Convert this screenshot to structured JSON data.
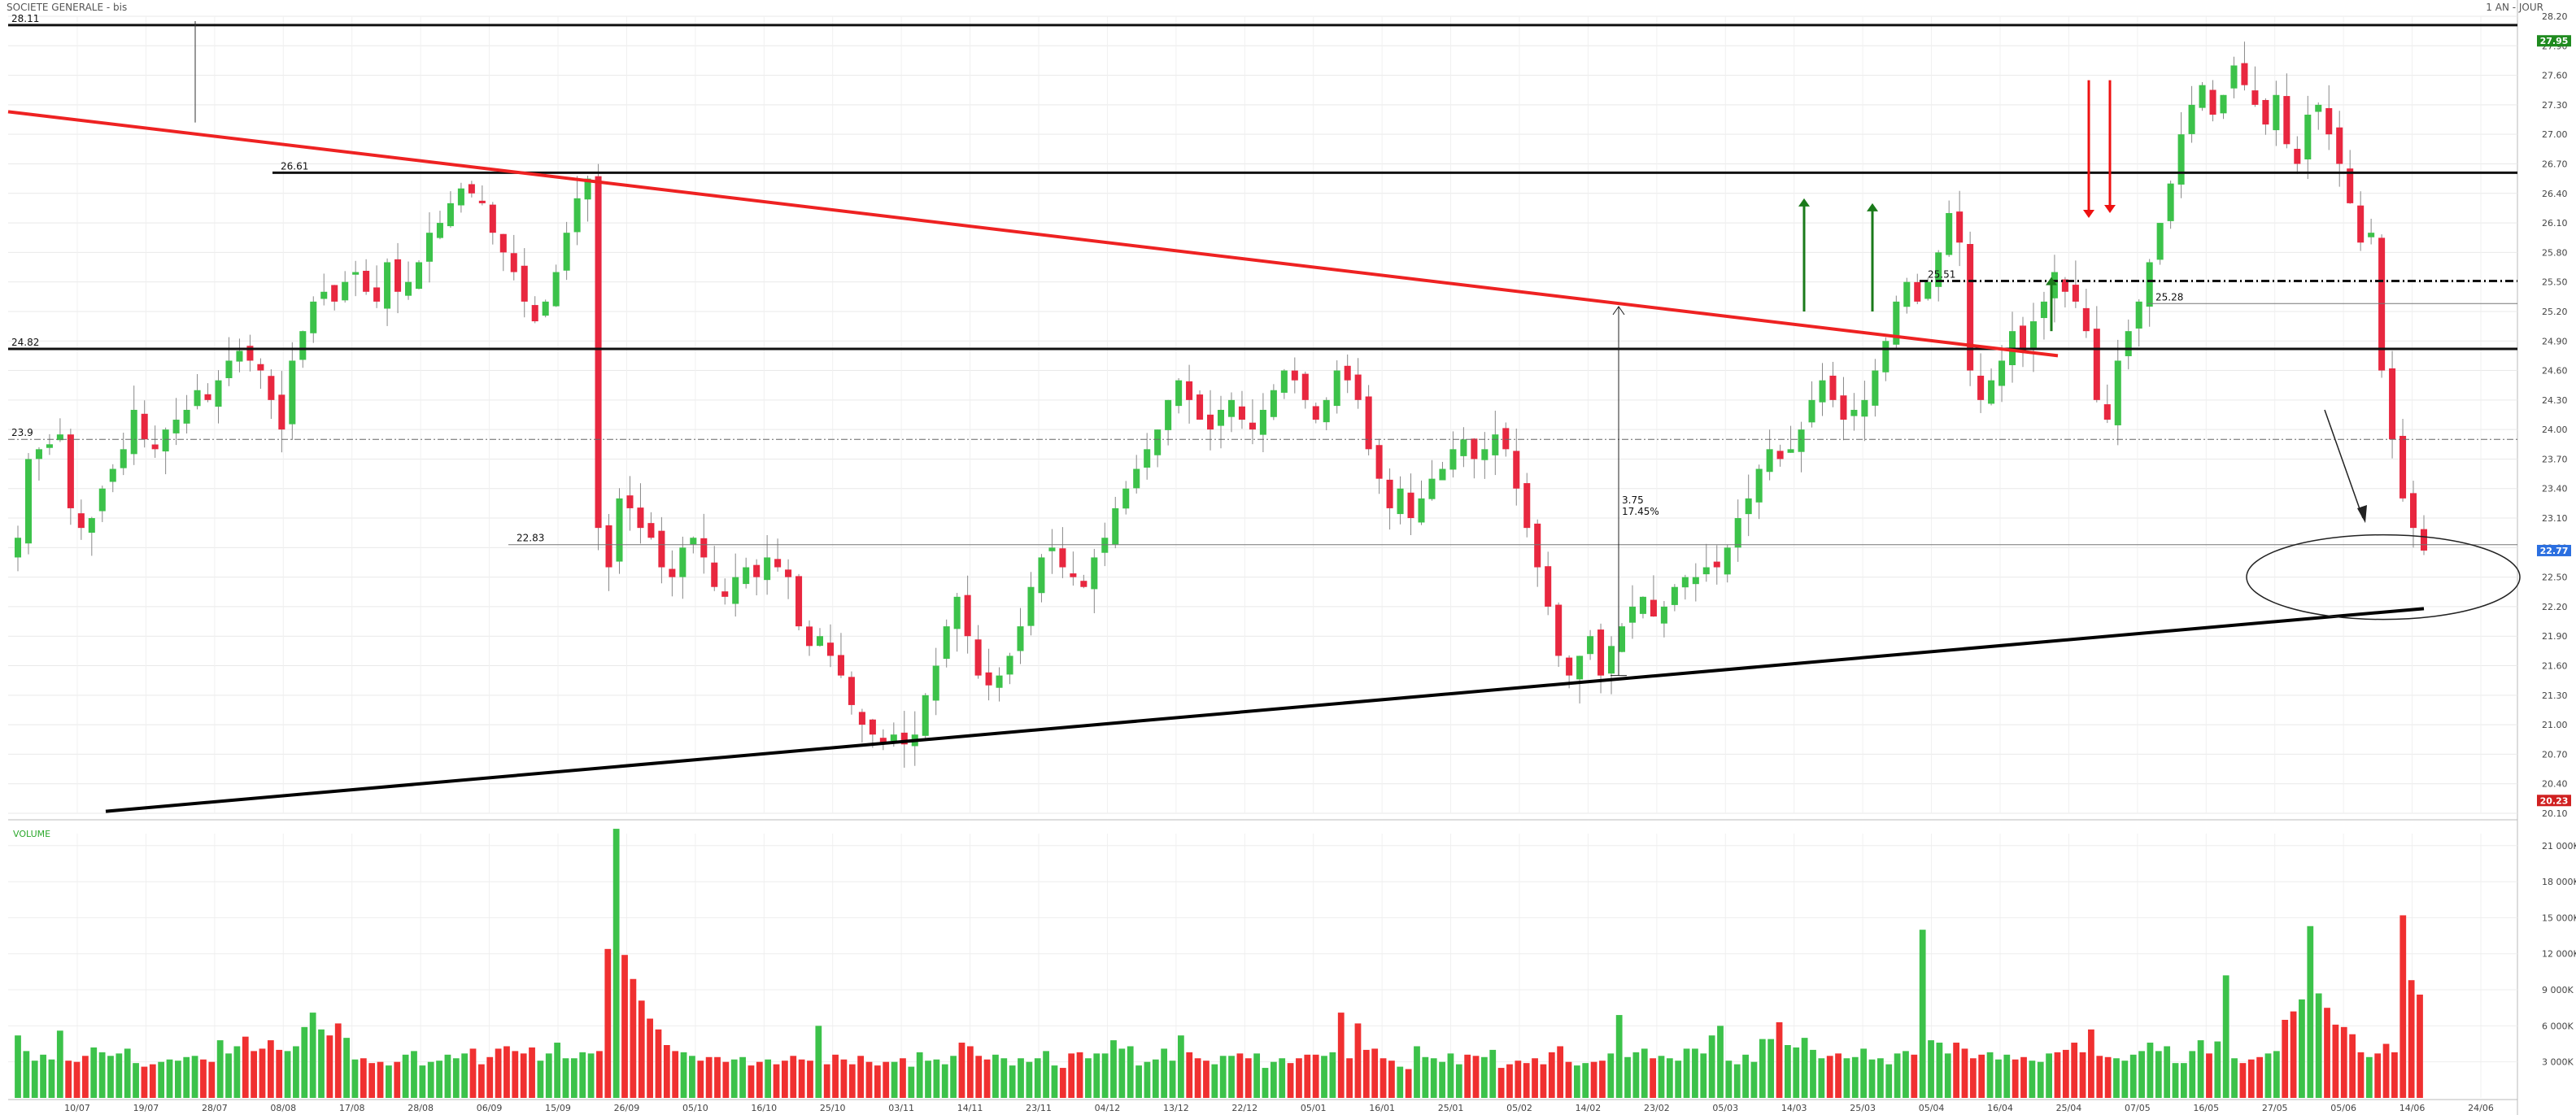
{
  "header": {
    "title": "SOCIETE GENERALE - bis",
    "period": "1 AN - JOUR"
  },
  "colors": {
    "up": "#3cc24a",
    "down": "#e8273f",
    "trend_red": "#ee2222",
    "arrow_green": "#1a7a1a",
    "badge_last": "#2b6fe0",
    "badge_high": "#1f8a1f",
    "badge_low": "#d02020"
  },
  "chart_data": {
    "type": "candlestick",
    "price_axis": {
      "min": 20.1,
      "max": 28.2,
      "ticks": [
        "28.20",
        "27.90",
        "27.60",
        "27.30",
        "27.00",
        "26.70",
        "26.40",
        "26.10",
        "25.80",
        "25.50",
        "25.20",
        "24.90",
        "24.60",
        "24.30",
        "24.00",
        "23.70",
        "23.40",
        "23.10",
        "22.80",
        "22.50",
        "22.20",
        "21.90",
        "21.60",
        "21.30",
        "21.00",
        "20.70",
        "20.40",
        "20.10"
      ]
    },
    "date_labels": [
      "10/07",
      "19/07",
      "28/07",
      "08/08",
      "17/08",
      "28/08",
      "06/09",
      "15/09",
      "26/09",
      "05/10",
      "16/10",
      "25/10",
      "03/11",
      "14/11",
      "23/11",
      "04/12",
      "13/12",
      "22/12",
      "05/01",
      "16/01",
      "25/01",
      "05/02",
      "14/02",
      "23/02",
      "05/03",
      "14/03",
      "25/03",
      "05/04",
      "16/04",
      "25/04",
      "07/05",
      "16/05",
      "27/05",
      "05/06",
      "14/06",
      "24/06"
    ],
    "horizontal_levels": [
      {
        "value": 28.11,
        "label": "28.11",
        "style": "solid"
      },
      {
        "value": 26.61,
        "label": "26.61",
        "style": "solid"
      },
      {
        "value": 24.82,
        "label": "24.82",
        "style": "solid"
      },
      {
        "value": 23.9,
        "label": "23.9",
        "style": "dashdot"
      },
      {
        "value": 22.83,
        "label": "22.83",
        "style": "thin"
      },
      {
        "value": 25.51,
        "label": "25.51",
        "style": "dashed"
      },
      {
        "value": 25.28,
        "label": "25.28",
        "style": "thin"
      }
    ],
    "badges": {
      "high": "27.95",
      "last": "22.77",
      "low": "20.23"
    },
    "annotations": {
      "measure_text_1": "3.75",
      "measure_text_2": "17.45%"
    },
    "volume": {
      "label": "VOLUME",
      "ticks": [
        "21 000K",
        "18 000K",
        "15 000K",
        "12 000K",
        "9 000K",
        "6 000K",
        "3 000K"
      ],
      "max": 22000
    },
    "closes": [
      22.9,
      23.7,
      23.8,
      23.85,
      23.95,
      23.2,
      23.0,
      23.1,
      23.4,
      23.6,
      23.8,
      24.2,
      23.9,
      23.8,
      24.0,
      24.1,
      24.2,
      24.4,
      24.3,
      24.5,
      24.7,
      24.8,
      24.7,
      24.6,
      24.3,
      24.0,
      24.7,
      25.0,
      25.3,
      25.4,
      25.3,
      25.5,
      25.6,
      25.4,
      25.3,
      25.7,
      25.4,
      25.5,
      25.7,
      26.0,
      26.1,
      26.3,
      26.45,
      26.4,
      26.3,
      26.0,
      25.8,
      25.6,
      25.3,
      25.1,
      25.3,
      25.6,
      26.0,
      26.35,
      26.55,
      23.0,
      22.6,
      23.3,
      23.2,
      23.0,
      22.9,
      22.6,
      22.5,
      22.8,
      22.9,
      22.7,
      22.4,
      22.3,
      22.5,
      22.6,
      22.5,
      22.7,
      22.6,
      22.5,
      22.0,
      21.8,
      21.9,
      21.7,
      21.5,
      21.2,
      21.0,
      20.9,
      20.8,
      20.9,
      20.8,
      20.9,
      21.3,
      21.6,
      22.0,
      22.3,
      21.9,
      21.5,
      21.4,
      21.5,
      21.7,
      22.0,
      22.4,
      22.7,
      22.8,
      22.6,
      22.5,
      22.4,
      22.7,
      22.9,
      23.2,
      23.4,
      23.6,
      23.8,
      24.0,
      24.3,
      24.5,
      24.3,
      24.1,
      24.0,
      24.2,
      24.3,
      24.1,
      24.0,
      24.2,
      24.4,
      24.6,
      24.5,
      24.3,
      24.1,
      24.3,
      24.6,
      24.5,
      24.3,
      23.8,
      23.5,
      23.2,
      23.4,
      23.1,
      23.3,
      23.5,
      23.6,
      23.8,
      23.9,
      23.7,
      23.8,
      23.95,
      23.8,
      23.4,
      23.0,
      22.6,
      22.2,
      21.7,
      21.5,
      21.7,
      21.9,
      21.5,
      21.8,
      22.0,
      22.2,
      22.3,
      22.1,
      22.2,
      22.4,
      22.5,
      22.5,
      22.6,
      22.6,
      22.8,
      23.1,
      23.3,
      23.6,
      23.8,
      23.7,
      23.8,
      24.0,
      24.3,
      24.5,
      24.3,
      24.1,
      24.2,
      24.3,
      24.6,
      24.9,
      25.3,
      25.5,
      25.3,
      25.5,
      25.8,
      26.2,
      25.9,
      24.6,
      24.3,
      24.5,
      24.7,
      25.0,
      24.8,
      25.1,
      25.3,
      25.6,
      25.4,
      25.3,
      25.0,
      24.3,
      24.1,
      24.7,
      25.0,
      25.3,
      25.7,
      26.1,
      26.5,
      27.0,
      27.3,
      27.5,
      27.2,
      27.4,
      27.7,
      27.5,
      27.3,
      27.1,
      27.4,
      26.9,
      26.7,
      27.2,
      27.3,
      27.0,
      26.7,
      26.3,
      25.9,
      26.0,
      24.6,
      23.9,
      23.3,
      23.0,
      22.77
    ],
    "volumes": [
      5200,
      3900,
      3100,
      3600,
      3200,
      5600,
      3100,
      3000,
      3500,
      4200,
      3800,
      3500,
      3700,
      4100,
      2900,
      2600,
      2800,
      3000,
      3200,
      3100,
      3400,
      3500,
      3200,
      3000,
      4800,
      3700,
      4300,
      5100,
      3900,
      4100,
      4800,
      4000,
      3900,
      4300,
      5900,
      7100,
      5700,
      5200,
      6200,
      5000,
      3200,
      3300,
      2900,
      3000,
      2700,
      3000,
      3600,
      3900,
      2700,
      3000,
      3100,
      3600,
      3300,
      3700,
      4100,
      2800,
      3400,
      4100,
      4300,
      3900,
      3700,
      4200,
      3100,
      3700,
      4600,
      3300,
      3300,
      3800,
      3700,
      3900,
      12400,
      22400,
      11900,
      9900,
      8100,
      6600,
      5700,
      4400,
      3900,
      3800,
      3500,
      3100,
      3400,
      3400,
      3000,
      3200,
      3400,
      2700,
      3000,
      3200,
      2800,
      3100,
      3500,
      3200,
      3100,
      6000,
      2800,
      3600,
      3200,
      2800,
      3500,
      3000,
      2700,
      3000,
      3000,
      3300,
      2600,
      3800,
      3100,
      3200,
      2800,
      3500,
      4600,
      4300,
      3500,
      3200,
      3600,
      3300,
      2700,
      3300,
      3000,
      3300,
      3900,
      2700,
      2500,
      3700,
      3800,
      3300,
      3700,
      3700,
      4800,
      4100,
      4300,
      2700,
      3000,
      3200,
      4100,
      3100,
      5200,
      3800,
      3300,
      3100,
      2800,
      3500,
      3500,
      3700,
      3300,
      3700,
      2500,
      3000,
      3300,
      2900,
      3300,
      3600,
      3600,
      3500,
      3800,
      7100,
      3300,
      6200,
      4000,
      4100,
      3300,
      3100,
      2600,
      2400,
      4300,
      3400,
      3300,
      3000,
      3700,
      2800,
      3600,
      3500,
      3400,
      4000,
      2500,
      2800,
      3100,
      2900,
      3300,
      2800,
      3800,
      4300,
      3000,
      2700,
      2900,
      3000,
      3100,
      3700,
      6900,
      3400,
      3800,
      4100,
      3300,
      3500,
      3300,
      3100,
      4100,
      4100,
      3700,
      5200,
      6000,
      3100,
      2800,
      3600,
      3000,
      4900,
      4900,
      6300,
      4400,
      4200,
      5000,
      4000,
      3300,
      3500,
      3700,
      3300,
      3400,
      4100,
      3200,
      3300,
      2800,
      3700,
      3900,
      3600,
      14000,
      4800,
      4600,
      3700,
      4600,
      4100,
      3300,
      3600,
      3800,
      3200,
      3600,
      3200,
      3400,
      3100,
      3000,
      3700,
      3800,
      4000,
      4600,
      3800,
      5700,
      3500,
      3400,
      3300,
      3100,
      3600,
      3900,
      4600,
      3900,
      4300,
      2900,
      2900,
      3900,
      4800,
      3700,
      4700,
      10200
    ],
    "volumes_tail": [
      3300,
      2900,
      3200,
      3400,
      3700,
      3900,
      6500,
      7200,
      8200,
      14300,
      8700,
      7500,
      6100,
      5900,
      5300,
      3800,
      3400,
      3700,
      4500,
      3800,
      15200,
      9800,
      8600
    ]
  }
}
